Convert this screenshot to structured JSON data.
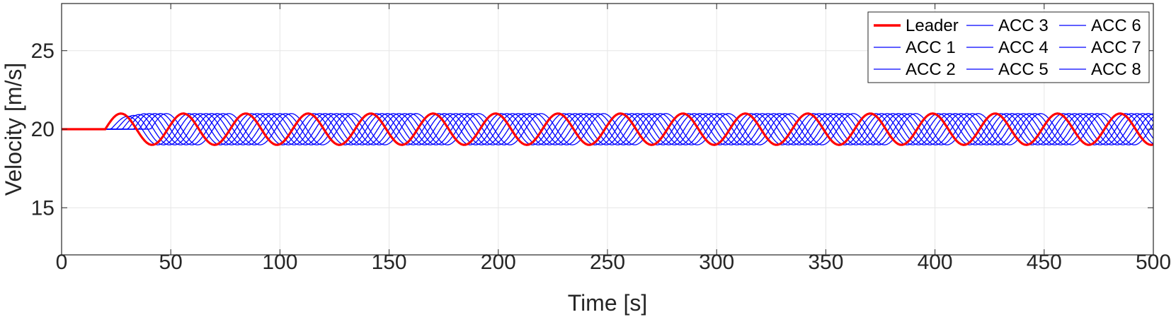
{
  "chart_data": {
    "type": "line",
    "title": "",
    "xlabel": "Time [s]",
    "ylabel": "Velocity [m/s]",
    "xlim": [
      0,
      500
    ],
    "ylim": [
      12,
      28
    ],
    "xticks": [
      "0",
      "50",
      "100",
      "150",
      "200",
      "250",
      "300",
      "350",
      "400",
      "450",
      "500"
    ],
    "yticks": [
      "15",
      "20",
      "25"
    ],
    "grid": true,
    "legend_position": "top-right",
    "legend_columns": 3,
    "x_sampling": {
      "start": 0,
      "end": 500,
      "step": 1
    },
    "leader_profile": {
      "baseline": 20,
      "amplitude": 1,
      "period": 28.6,
      "start": 20
    },
    "followers_profile": {
      "delay_per_vehicle": 2.6,
      "amplitude": 1.0
    },
    "series": [
      {
        "name": "Leader",
        "color": "#ff0000",
        "role": "leader"
      },
      {
        "name": "ACC 1",
        "color": "#0000ff",
        "role": "follower",
        "index": 1
      },
      {
        "name": "ACC 2",
        "color": "#0000ff",
        "role": "follower",
        "index": 2
      },
      {
        "name": "ACC 3",
        "color": "#0000ff",
        "role": "follower",
        "index": 3
      },
      {
        "name": "ACC 4",
        "color": "#0000ff",
        "role": "follower",
        "index": 4
      },
      {
        "name": "ACC 5",
        "color": "#0000ff",
        "role": "follower",
        "index": 5
      },
      {
        "name": "ACC 6",
        "color": "#0000ff",
        "role": "follower",
        "index": 6
      },
      {
        "name": "ACC 7",
        "color": "#0000ff",
        "role": "follower",
        "index": 7
      },
      {
        "name": "ACC 8",
        "color": "#0000ff",
        "role": "follower",
        "index": 8
      }
    ]
  },
  "colors": {
    "leader": "#ff0000",
    "follower": "#0000ff",
    "grid": "#e6e6e6",
    "axis": "#262626"
  }
}
